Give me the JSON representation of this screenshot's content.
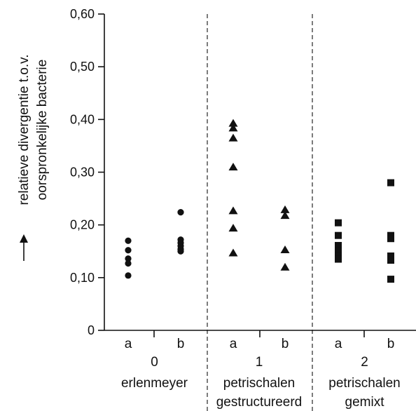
{
  "chart_data": {
    "type": "scatter",
    "ylabel": [
      "relatieve divergentie t.o.v.",
      "oorspronkelijke bacterie"
    ],
    "ylabel_arrow": "↑",
    "ylim": [
      0,
      0.6
    ],
    "y_ticks": [
      {
        "value": 0,
        "label": "0"
      },
      {
        "value": 0.1,
        "label": "0,10"
      },
      {
        "value": 0.2,
        "label": "0,20"
      },
      {
        "value": 0.3,
        "label": "0,30"
      },
      {
        "value": 0.4,
        "label": "0,40"
      },
      {
        "value": 0.5,
        "label": "0,50"
      },
      {
        "value": 0.6,
        "label": "0,60"
      }
    ],
    "groups": [
      {
        "number": "0",
        "name_lines": [
          "erlenmeyer"
        ],
        "marker": "circle",
        "subgroups": [
          {
            "label": "a",
            "values": [
              0.17,
              0.152,
              0.136,
              0.127,
              0.104
            ]
          },
          {
            "label": "b",
            "values": [
              0.224,
              0.172,
              0.166,
              0.16,
              0.154,
              0.15
            ]
          }
        ]
      },
      {
        "number": "1",
        "name_lines": [
          "petrischalen",
          "gestructureerd"
        ],
        "marker": "triangle",
        "subgroups": [
          {
            "label": "a",
            "values": [
              0.393,
              0.384,
              0.365,
              0.31,
              0.227,
              0.194,
              0.147
            ]
          },
          {
            "label": "b",
            "values": [
              0.229,
              0.218,
              0.153,
              0.12
            ]
          }
        ]
      },
      {
        "number": "2",
        "name_lines": [
          "petrischalen",
          "gemixt"
        ],
        "marker": "square",
        "subgroups": [
          {
            "label": "a",
            "values": [
              0.204,
              0.18,
              0.161,
              0.151,
              0.141,
              0.135
            ]
          },
          {
            "label": "b",
            "values": [
              0.28,
              0.18,
              0.174,
              0.141,
              0.133,
              0.097
            ]
          }
        ]
      }
    ],
    "grid": false,
    "legend": "none",
    "marker_color": "#111111"
  }
}
